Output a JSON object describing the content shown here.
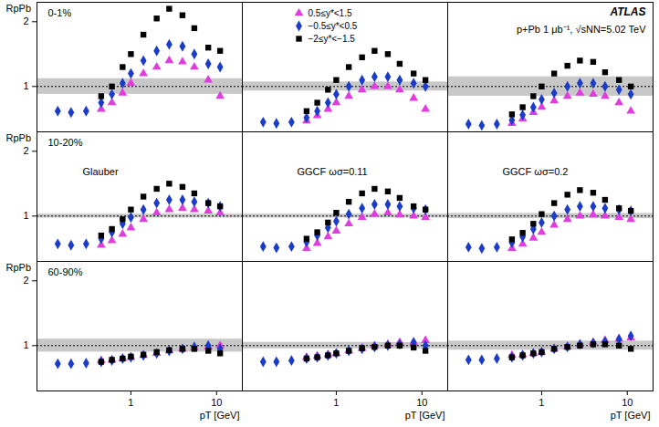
{
  "chart_data": [
    {
      "type": "scatter",
      "log": "x",
      "xlim": [
        0.08,
        20
      ],
      "ylim": [
        0.3,
        2.3
      ],
      "xticks": [
        1,
        10
      ],
      "yticks": [
        1,
        2
      ],
      "tick_labels": "y",
      "ylabel": "RpPb",
      "annotations": [
        "0-1%"
      ],
      "band": {
        "lo": 0.88,
        "hi": 1.12
      },
      "reference_line": 1,
      "x": [
        0.14,
        0.2,
        0.3,
        0.45,
        0.6,
        0.8,
        1,
        1.4,
        2,
        2.8,
        4,
        5.5,
        8,
        11
      ],
      "series": [
        {
          "name": "0.5≤y*<1.5",
          "color": "#e03ce0",
          "marker": "triangle",
          "values": [
            null,
            null,
            null,
            0.65,
            0.75,
            0.9,
            1.05,
            1.2,
            1.3,
            1.4,
            1.38,
            1.3,
            1.1,
            0.85
          ]
        },
        {
          "name": "−0.5≤y*<0.5",
          "color": "#1a3cc8",
          "marker": "diamond",
          "values": [
            0.62,
            0.6,
            0.62,
            0.75,
            0.88,
            1.05,
            1.2,
            1.4,
            1.55,
            1.65,
            1.62,
            1.5,
            1.35,
            1.3
          ]
        },
        {
          "name": "−2≤y*<−1.5",
          "color": "#000000",
          "marker": "square",
          "values": [
            null,
            null,
            null,
            0.85,
            1.0,
            1.3,
            1.5,
            1.8,
            2.05,
            2.2,
            2.1,
            1.9,
            1.6,
            1.55
          ]
        }
      ]
    },
    {
      "type": "scatter",
      "log": "x",
      "xlim": [
        0.08,
        20
      ],
      "ylim": [
        0.3,
        2.3
      ],
      "xticks": [
        1,
        10
      ],
      "yticks": [
        1,
        2
      ],
      "tick_labels": false,
      "legend": "top",
      "annotations": [],
      "band": {
        "lo": 0.93,
        "hi": 1.07
      },
      "reference_line": 1,
      "x": [
        0.14,
        0.2,
        0.3,
        0.45,
        0.6,
        0.8,
        1,
        1.4,
        2,
        2.8,
        4,
        5.5,
        8,
        11
      ],
      "series": [
        {
          "name": "0.5≤y*<1.5",
          "color": "#e03ce0",
          "marker": "triangle",
          "values": [
            null,
            null,
            null,
            0.47,
            0.55,
            0.65,
            0.75,
            0.85,
            0.95,
            1.0,
            1.0,
            0.95,
            0.82,
            0.65
          ]
        },
        {
          "name": "−0.5≤y*<0.5",
          "color": "#1a3cc8",
          "marker": "diamond",
          "values": [
            0.45,
            0.43,
            0.45,
            0.52,
            0.62,
            0.75,
            0.88,
            1.0,
            1.1,
            1.15,
            1.15,
            1.1,
            1.05,
            1.0
          ]
        },
        {
          "name": "−2≤y*<−1.5",
          "color": "#000000",
          "marker": "square",
          "values": [
            null,
            null,
            null,
            0.62,
            0.75,
            0.95,
            1.1,
            1.3,
            1.45,
            1.55,
            1.5,
            1.35,
            1.2,
            1.1
          ]
        }
      ]
    },
    {
      "type": "scatter",
      "log": "x",
      "xlim": [
        0.08,
        20
      ],
      "ylim": [
        0.3,
        2.3
      ],
      "xticks": [
        1,
        10
      ],
      "yticks": [
        1,
        2
      ],
      "tick_labels": false,
      "annotations": [
        "ATLAS",
        "p+Pb 1 μb⁻¹, √sNN=5.02 TeV"
      ],
      "band": {
        "lo": 0.85,
        "hi": 1.15
      },
      "reference_line": 1,
      "x": [
        0.14,
        0.2,
        0.3,
        0.45,
        0.6,
        0.8,
        1,
        1.4,
        2,
        2.8,
        4,
        5.5,
        8,
        11
      ],
      "series": [
        {
          "name": "0.5≤y*<1.5",
          "color": "#e03ce0",
          "marker": "triangle",
          "values": [
            null,
            null,
            null,
            0.43,
            0.5,
            0.6,
            0.68,
            0.78,
            0.85,
            0.9,
            0.88,
            0.85,
            0.75,
            0.62
          ]
        },
        {
          "name": "−0.5≤y*<0.5",
          "color": "#1a3cc8",
          "marker": "diamond",
          "values": [
            0.42,
            0.4,
            0.42,
            0.48,
            0.56,
            0.68,
            0.8,
            0.9,
            1.0,
            1.05,
            1.05,
            1.0,
            0.95,
            0.88
          ]
        },
        {
          "name": "−2≤y*<−1.5",
          "color": "#000000",
          "marker": "square",
          "values": [
            null,
            null,
            null,
            0.57,
            0.68,
            0.85,
            1.0,
            1.2,
            1.32,
            1.4,
            1.38,
            1.22,
            1.1,
            1.0
          ]
        }
      ]
    },
    {
      "type": "scatter",
      "log": "x",
      "xlim": [
        0.08,
        20
      ],
      "ylim": [
        0.3,
        2.3
      ],
      "xticks": [
        1,
        10
      ],
      "yticks": [
        1,
        2
      ],
      "tick_labels": "y",
      "ylabel": "RpPb",
      "annotations": [
        "10-20%",
        "Glauber"
      ],
      "band": {
        "lo": 0.97,
        "hi": 1.03
      },
      "reference_line": 1,
      "x": [
        0.14,
        0.2,
        0.3,
        0.45,
        0.6,
        0.8,
        1,
        1.4,
        2,
        2.8,
        4,
        5.5,
        8,
        11
      ],
      "series": [
        {
          "name": "0.5≤y*<1.5",
          "color": "#e03ce0",
          "marker": "triangle",
          "values": [
            null,
            null,
            null,
            0.55,
            0.62,
            0.72,
            0.82,
            0.95,
            1.05,
            1.1,
            1.12,
            1.1,
            1.08,
            1.05
          ]
        },
        {
          "name": "−0.5≤y*<0.5",
          "color": "#1a3cc8",
          "marker": "diamond",
          "values": [
            0.57,
            0.55,
            0.57,
            0.65,
            0.75,
            0.88,
            0.98,
            1.1,
            1.2,
            1.25,
            1.25,
            1.22,
            1.2,
            1.15
          ]
        },
        {
          "name": "−2≤y*<−1.5",
          "color": "#000000",
          "marker": "square",
          "values": [
            null,
            null,
            null,
            0.7,
            0.8,
            0.95,
            1.1,
            1.3,
            1.42,
            1.5,
            1.45,
            1.35,
            1.2,
            1.15
          ]
        }
      ]
    },
    {
      "type": "scatter",
      "log": "x",
      "xlim": [
        0.08,
        20
      ],
      "ylim": [
        0.3,
        2.3
      ],
      "xticks": [
        1,
        10
      ],
      "yticks": [
        1,
        2
      ],
      "tick_labels": false,
      "annotations": [
        "GGCF ωσ=0.11"
      ],
      "band": {
        "lo": 0.97,
        "hi": 1.03
      },
      "reference_line": 1,
      "x": [
        0.14,
        0.2,
        0.3,
        0.45,
        0.6,
        0.8,
        1,
        1.4,
        2,
        2.8,
        4,
        5.5,
        8,
        11
      ],
      "series": [
        {
          "name": "0.5≤y*<1.5",
          "color": "#e03ce0",
          "marker": "triangle",
          "values": [
            null,
            null,
            null,
            0.5,
            0.58,
            0.68,
            0.77,
            0.88,
            0.98,
            1.03,
            1.05,
            1.02,
            1.0,
            0.98
          ]
        },
        {
          "name": "−0.5≤y*<0.5",
          "color": "#1a3cc8",
          "marker": "diamond",
          "values": [
            0.53,
            0.51,
            0.53,
            0.6,
            0.7,
            0.82,
            0.92,
            1.03,
            1.12,
            1.18,
            1.18,
            1.15,
            1.12,
            1.1
          ]
        },
        {
          "name": "−2≤y*<−1.5",
          "color": "#000000",
          "marker": "square",
          "values": [
            null,
            null,
            null,
            0.65,
            0.75,
            0.9,
            1.05,
            1.22,
            1.35,
            1.42,
            1.38,
            1.28,
            1.15,
            1.1
          ]
        }
      ]
    },
    {
      "type": "scatter",
      "log": "x",
      "xlim": [
        0.08,
        20
      ],
      "ylim": [
        0.3,
        2.3
      ],
      "xticks": [
        1,
        10
      ],
      "yticks": [
        1,
        2
      ],
      "tick_labels": false,
      "annotations": [
        "GGCF ωσ=0.2"
      ],
      "band": {
        "lo": 0.96,
        "hi": 1.04
      },
      "reference_line": 1,
      "x": [
        0.14,
        0.2,
        0.3,
        0.45,
        0.6,
        0.8,
        1,
        1.4,
        2,
        2.8,
        4,
        5.5,
        8,
        11
      ],
      "series": [
        {
          "name": "0.5≤y*<1.5",
          "color": "#e03ce0",
          "marker": "triangle",
          "values": [
            null,
            null,
            null,
            0.5,
            0.57,
            0.66,
            0.75,
            0.86,
            0.95,
            1.0,
            1.02,
            1.0,
            0.98,
            0.95
          ]
        },
        {
          "name": "−0.5≤y*<0.5",
          "color": "#1a3cc8",
          "marker": "diamond",
          "values": [
            0.52,
            0.5,
            0.52,
            0.59,
            0.68,
            0.8,
            0.9,
            1.0,
            1.1,
            1.15,
            1.15,
            1.12,
            1.1,
            1.08
          ]
        },
        {
          "name": "−2≤y*<−1.5",
          "color": "#000000",
          "marker": "square",
          "values": [
            null,
            null,
            null,
            0.64,
            0.74,
            0.88,
            1.03,
            1.2,
            1.33,
            1.4,
            1.36,
            1.25,
            1.12,
            1.08
          ]
        }
      ]
    },
    {
      "type": "scatter",
      "log": "x",
      "xlim": [
        0.08,
        20
      ],
      "ylim": [
        0.3,
        2.3
      ],
      "xticks": [
        1,
        10
      ],
      "yticks": [
        1,
        2
      ],
      "ylabel": "RpPb",
      "xlabel": "pT [GeV]",
      "annotations": [
        "60-90%"
      ],
      "band": {
        "lo": 0.9,
        "hi": 1.1
      },
      "reference_line": 1,
      "x": [
        0.14,
        0.2,
        0.3,
        0.45,
        0.6,
        0.8,
        1,
        1.4,
        2,
        2.8,
        4,
        5.5,
        8,
        11
      ],
      "series": [
        {
          "name": "0.5≤y*<1.5",
          "color": "#e03ce0",
          "marker": "triangle",
          "values": [
            null,
            null,
            null,
            0.77,
            0.78,
            0.8,
            0.82,
            0.85,
            0.88,
            0.92,
            0.95,
            0.97,
            0.98,
            1.0
          ]
        },
        {
          "name": "−0.5≤y*<0.5",
          "color": "#1a3cc8",
          "marker": "diamond",
          "values": [
            0.72,
            0.72,
            0.73,
            0.75,
            0.77,
            0.8,
            0.82,
            0.85,
            0.88,
            0.92,
            0.95,
            0.98,
            1.0,
            0.95
          ]
        },
        {
          "name": "−2≤y*<−1.5",
          "color": "#000000",
          "marker": "square",
          "values": [
            null,
            null,
            null,
            0.75,
            0.78,
            0.8,
            0.83,
            0.86,
            0.9,
            0.93,
            0.95,
            0.95,
            0.92,
            0.88
          ]
        }
      ]
    },
    {
      "type": "scatter",
      "log": "x",
      "xlim": [
        0.08,
        20
      ],
      "ylim": [
        0.3,
        2.3
      ],
      "xticks": [
        1,
        10
      ],
      "yticks": [
        1,
        2
      ],
      "tick_labels": "x",
      "xlabel": "pT [GeV]",
      "annotations": [],
      "band": {
        "lo": 0.95,
        "hi": 1.05
      },
      "reference_line": 1,
      "x": [
        0.14,
        0.2,
        0.3,
        0.45,
        0.6,
        0.8,
        1,
        1.4,
        2,
        2.8,
        4,
        5.5,
        8,
        11
      ],
      "series": [
        {
          "name": "0.5≤y*<1.5",
          "color": "#e03ce0",
          "marker": "triangle",
          "values": [
            null,
            null,
            null,
            0.82,
            0.84,
            0.86,
            0.88,
            0.92,
            0.96,
            1.0,
            1.02,
            1.05,
            1.05,
            1.08
          ]
        },
        {
          "name": "−0.5≤y*<0.5",
          "color": "#1a3cc8",
          "marker": "diamond",
          "values": [
            0.75,
            0.75,
            0.77,
            0.8,
            0.82,
            0.85,
            0.88,
            0.92,
            0.95,
            0.98,
            1.0,
            1.02,
            1.05,
            1.0
          ]
        },
        {
          "name": "−2≤y*<−1.5",
          "color": "#000000",
          "marker": "square",
          "values": [
            null,
            null,
            null,
            0.8,
            0.82,
            0.85,
            0.88,
            0.92,
            0.96,
            0.98,
            1.0,
            1.0,
            0.97,
            0.92
          ]
        }
      ]
    },
    {
      "type": "scatter",
      "log": "x",
      "xlim": [
        0.08,
        20
      ],
      "ylim": [
        0.3,
        2.3
      ],
      "xticks": [
        1,
        10
      ],
      "yticks": [
        1,
        2
      ],
      "tick_labels": "x",
      "xlabel": "pT [GeV]",
      "annotations": [],
      "band": {
        "lo": 0.93,
        "hi": 1.07
      },
      "reference_line": 1,
      "x": [
        0.14,
        0.2,
        0.3,
        0.45,
        0.6,
        0.8,
        1,
        1.4,
        2,
        2.8,
        4,
        5.5,
        8,
        11
      ],
      "series": [
        {
          "name": "0.5≤y*<1.5",
          "color": "#e03ce0",
          "marker": "triangle",
          "values": [
            null,
            null,
            null,
            0.85,
            0.86,
            0.88,
            0.9,
            0.95,
            0.98,
            1.02,
            1.05,
            1.08,
            1.1,
            1.12
          ]
        },
        {
          "name": "−0.5≤y*<0.5",
          "color": "#1a3cc8",
          "marker": "diamond",
          "values": [
            0.78,
            0.78,
            0.8,
            0.82,
            0.85,
            0.88,
            0.9,
            0.95,
            0.98,
            1.02,
            1.04,
            1.06,
            1.1,
            1.15
          ]
        },
        {
          "name": "−2≤y*<−1.5",
          "color": "#000000",
          "marker": "square",
          "values": [
            null,
            null,
            null,
            0.82,
            0.85,
            0.88,
            0.9,
            0.95,
            0.98,
            1.0,
            1.02,
            1.02,
            1.0,
            0.95
          ]
        }
      ]
    }
  ]
}
